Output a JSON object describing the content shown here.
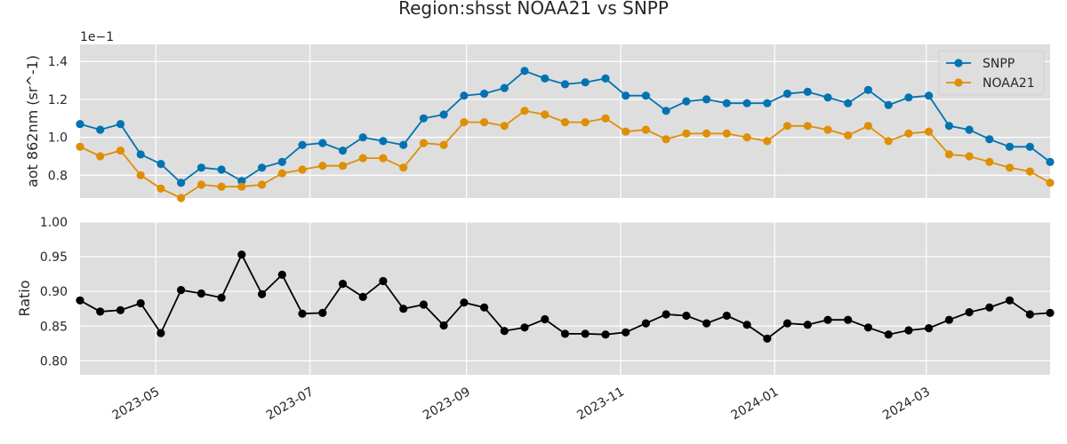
{
  "chart_data": {
    "title": "Region:shsst NOAA21 vs SNPP",
    "x_type": "date",
    "x_ticks": [
      "2023-05",
      "2023-07",
      "2023-09",
      "2023-11",
      "2024-01",
      "2024-03"
    ],
    "dates": [
      "2023-04-01",
      "2023-04-09",
      "2023-04-17",
      "2023-04-25",
      "2023-05-03",
      "2023-05-11",
      "2023-05-19",
      "2023-05-27",
      "2023-06-04",
      "2023-06-12",
      "2023-06-20",
      "2023-06-28",
      "2023-07-06",
      "2023-07-14",
      "2023-07-22",
      "2023-07-30",
      "2023-08-07",
      "2023-08-15",
      "2023-08-23",
      "2023-08-31",
      "2023-09-08",
      "2023-09-16",
      "2023-09-24",
      "2023-10-02",
      "2023-10-10",
      "2023-10-18",
      "2023-10-26",
      "2023-11-03",
      "2023-11-11",
      "2023-11-19",
      "2023-11-27",
      "2023-12-05",
      "2023-12-13",
      "2023-12-21",
      "2023-12-29",
      "2024-01-06",
      "2024-01-14",
      "2024-01-22",
      "2024-01-30",
      "2024-02-07",
      "2024-02-15",
      "2024-02-23",
      "2024-03-02",
      "2024-03-10",
      "2024-03-18",
      "2024-03-26",
      "2024-04-03",
      "2024-04-11",
      "2024-04-19"
    ],
    "x_range": [
      "2023-04-01",
      "2024-04-19"
    ],
    "panels": [
      {
        "type": "line",
        "ylabel": "aot 862nm (sr^-1)",
        "offset_text": "1e−1",
        "ylim": [
          0.68,
          1.49
        ],
        "yticks": [
          0.8,
          1.0,
          1.2,
          1.4
        ],
        "ytick_labels": [
          "0.8",
          "1.0",
          "1.2",
          "1.4"
        ],
        "legend_position": "top-right",
        "series": [
          {
            "name": "SNPP",
            "color": "#0173b2",
            "values": [
              1.07,
              1.04,
              1.07,
              0.91,
              0.86,
              0.76,
              0.84,
              0.83,
              0.77,
              0.84,
              0.87,
              0.96,
              0.97,
              0.93,
              1.0,
              0.98,
              0.96,
              1.1,
              1.12,
              1.22,
              1.23,
              1.26,
              1.35,
              1.31,
              1.28,
              1.29,
              1.31,
              1.22,
              1.22,
              1.14,
              1.19,
              1.2,
              1.18,
              1.18,
              1.18,
              1.23,
              1.24,
              1.21,
              1.18,
              1.25,
              1.17,
              1.21,
              1.22,
              1.06,
              1.04,
              0.99,
              0.95,
              0.95,
              0.87
            ]
          },
          {
            "name": "NOAA21",
            "color": "#de8f05",
            "values": [
              0.95,
              0.9,
              0.93,
              0.8,
              0.73,
              0.68,
              0.75,
              0.74,
              0.74,
              0.75,
              0.81,
              0.83,
              0.85,
              0.85,
              0.89,
              0.89,
              0.84,
              0.97,
              0.96,
              1.08,
              1.08,
              1.06,
              1.14,
              1.12,
              1.08,
              1.08,
              1.1,
              1.03,
              1.04,
              0.99,
              1.02,
              1.02,
              1.02,
              1.0,
              0.98,
              1.06,
              1.06,
              1.04,
              1.01,
              1.06,
              0.98,
              1.02,
              1.03,
              0.91,
              0.9,
              0.87,
              0.84,
              0.82,
              0.76
            ]
          }
        ]
      },
      {
        "type": "line",
        "ylabel": "Ratio",
        "ylim": [
          0.78,
          1.0
        ],
        "yticks": [
          0.8,
          0.85,
          0.9,
          0.95,
          1.0
        ],
        "ytick_labels": [
          "0.80",
          "0.85",
          "0.90",
          "0.95",
          "1.00"
        ],
        "series": [
          {
            "name": "",
            "color": "#000000",
            "values": [
              0.887,
              0.871,
              0.873,
              0.883,
              0.84,
              0.902,
              0.897,
              0.891,
              0.953,
              0.896,
              0.924,
              0.868,
              0.869,
              0.911,
              0.892,
              0.915,
              0.875,
              0.881,
              0.851,
              0.884,
              0.877,
              0.843,
              0.848,
              0.86,
              0.839,
              0.839,
              0.838,
              0.841,
              0.854,
              0.867,
              0.865,
              0.854,
              0.865,
              0.852,
              0.832,
              0.854,
              0.852,
              0.859,
              0.859,
              0.848,
              0.838,
              0.844,
              0.847,
              0.859,
              0.87,
              0.877,
              0.887,
              0.867,
              0.869
            ]
          }
        ]
      }
    ],
    "grid": true,
    "background_color": "#dedede",
    "grid_color": "#ffffff"
  }
}
